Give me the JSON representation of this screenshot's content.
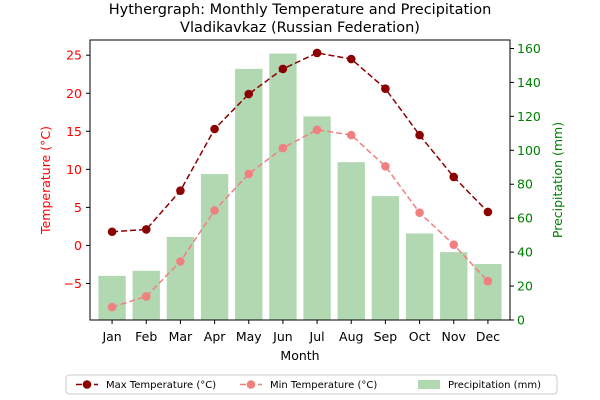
{
  "chart_data": {
    "type": "bar+line",
    "title": "Hythergraph: Monthly Temperature and Precipitation",
    "subtitle": "Vladikavkaz (Russian Federation)",
    "xlabel": "Month",
    "ylabel_left": "Temperature (°C)",
    "ylabel_right": "Precipitation (mm)",
    "categories": [
      "Jan",
      "Feb",
      "Mar",
      "Apr",
      "May",
      "Jun",
      "Jul",
      "Aug",
      "Sep",
      "Oct",
      "Nov",
      "Dec"
    ],
    "y_left_ticks": [
      -5,
      0,
      5,
      10,
      15,
      20,
      25
    ],
    "y_right_ticks": [
      0,
      20,
      40,
      60,
      80,
      100,
      120,
      140,
      160
    ],
    "ylim_left": [
      -9.8,
      27
    ],
    "ylim_right": [
      0,
      165
    ],
    "series": [
      {
        "name": "Max Temperature (°C)",
        "kind": "line",
        "axis": "left",
        "color": "#8b0000",
        "values": [
          1.8,
          2.1,
          7.2,
          15.3,
          19.9,
          23.2,
          25.3,
          24.5,
          20.6,
          14.5,
          9.0,
          4.4
        ]
      },
      {
        "name": "Min Temperature (°C)",
        "kind": "line",
        "axis": "left",
        "color": "#f08080",
        "values": [
          -8.1,
          -6.7,
          -2.1,
          4.6,
          9.4,
          12.8,
          15.2,
          14.5,
          10.4,
          4.3,
          0.1,
          -4.7
        ]
      },
      {
        "name": "Precipitation (mm)",
        "kind": "bar",
        "axis": "right",
        "color": "#b2d8b2",
        "values": [
          26,
          29,
          49,
          86,
          148,
          157,
          120,
          93,
          73,
          51,
          40,
          33
        ]
      }
    ],
    "grid": false,
    "legend_position": "bottom"
  },
  "colors": {
    "left_axis": "#ff0000",
    "right_axis": "#008000"
  }
}
